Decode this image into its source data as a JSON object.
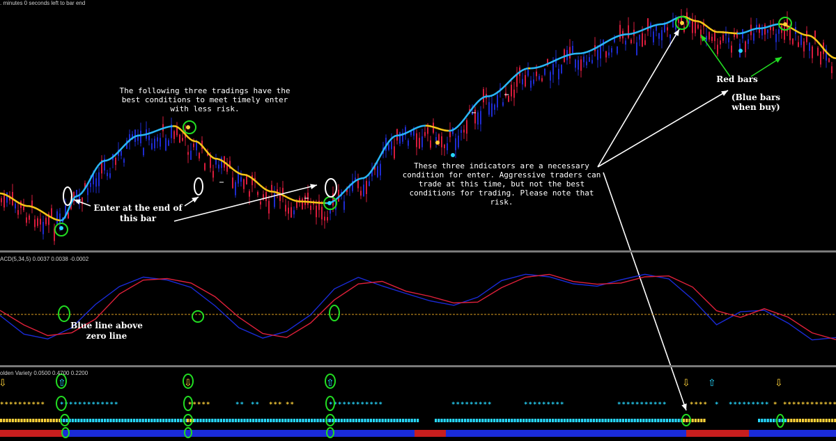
{
  "header": {
    "countdown": ". minutes 0 seconds left to bar end"
  },
  "macd_panel": {
    "title": "ACD(5,34,5) 0.0037 0.0038 -0.0002"
  },
  "golden_panel": {
    "title": "olden Variety 0.0500 0.4700 0.2200"
  },
  "annotations": {
    "best_conditions": "The following three tradings have the best conditions to meet timely enter with less risk.",
    "enter_end_bar": "Enter at the end of this bar",
    "necessary_condition": "These three indicators are a necessary condition for enter. Aggressive traders can trade at this time, but not the best conditions for trading. Please note that risk.",
    "red_bars": "Red bars",
    "blue_bars": "(Blue bars when buy)",
    "blue_line_zero": "Blue line above zero line"
  },
  "colors": {
    "background": "#000000",
    "bull_bar": "#1e2bd0",
    "bear_bar": "#d81c3c",
    "ma_up": "#29b6f6",
    "ma_down": "#f5c518",
    "macd_main": "#1a2bd8",
    "macd_signal": "#e0203a",
    "zero_line": "#e0a020",
    "highlight_circle": "#22dd22",
    "arrow_green": "#22dd22",
    "arrow_white": "#ffffff",
    "dot_yellow": "#ffd23a",
    "dot_cyan": "#27d8ff",
    "strip_red": "#c81e1e",
    "strip_blue": "#1a2bd8"
  },
  "chart_data": [
    {
      "type": "candlestick",
      "panel": "price",
      "series": [
        {
          "name": "",
          "values": [
            0.1,
            0.12,
            0.08,
            0.05,
            0.02,
            0.0,
            -0.02,
            -0.05,
            0.05,
            0.3,
            0.45,
            0.55,
            0.62,
            0.7,
            0.68,
            0.55,
            0.4,
            0.3,
            0.25,
            0.38,
            0.42,
            0.35,
            0.2,
            0.15,
            0.12,
            0.18,
            0.22,
            0.25,
            0.4,
            0.55,
            0.6,
            0.65,
            0.68,
            0.7,
            0.6,
            0.55,
            0.62,
            0.72,
            0.78,
            0.85,
            0.92,
            1.0,
            1.05,
            1.1,
            1.08,
            1.02,
            1.05,
            1.1,
            1.18,
            1.15,
            1.05,
            0.95,
            1.02,
            1.08,
            1.05,
            0.98,
            0.95,
            0.85
          ]
        }
      ],
      "ma_trend": [
        "down",
        "down",
        "down",
        "up",
        "up",
        "up",
        "up",
        "down",
        "down",
        "down",
        "down",
        "up",
        "up",
        "up",
        "up",
        "up",
        "up",
        "up",
        "up",
        "down",
        "down",
        "down"
      ]
    },
    {
      "type": "line",
      "panel": "macd",
      "series": [
        {
          "name": "",
          "values": [
            0.0,
            -0.4,
            -0.5,
            -0.3,
            0.2,
            0.6,
            0.75,
            0.7,
            0.55,
            0.2,
            -0.3,
            -0.5,
            -0.35,
            0.0,
            0.55,
            0.75,
            0.6,
            0.45,
            0.3,
            0.2,
            0.35,
            0.7,
            0.85,
            0.75,
            0.65,
            0.6,
            0.7,
            0.8,
            0.75,
            0.3,
            -0.2,
            0.05,
            0.1,
            -0.2,
            -0.5,
            -0.45
          ]
        },
        {
          "name": "",
          "values": [
            0.1,
            -0.2,
            -0.45,
            -0.4,
            -0.1,
            0.4,
            0.7,
            0.72,
            0.62,
            0.35,
            -0.05,
            -0.4,
            -0.45,
            -0.2,
            0.3,
            0.65,
            0.65,
            0.5,
            0.38,
            0.25,
            0.28,
            0.55,
            0.78,
            0.8,
            0.7,
            0.62,
            0.66,
            0.76,
            0.78,
            0.55,
            0.05,
            -0.05,
            0.1,
            -0.05,
            -0.35,
            -0.5
          ]
        }
      ]
    }
  ]
}
